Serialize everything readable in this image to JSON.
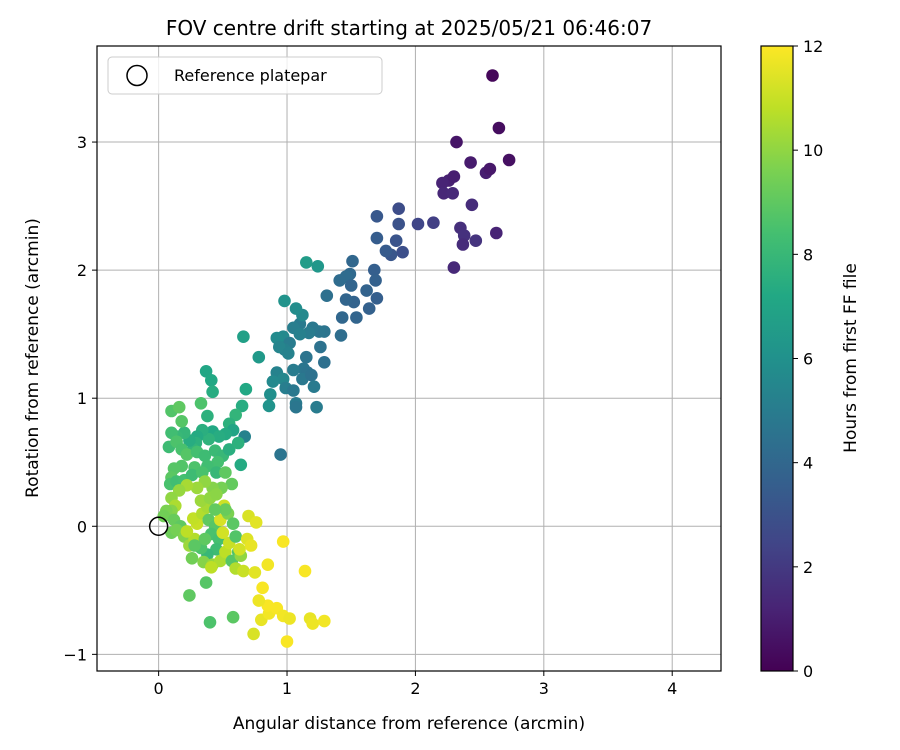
{
  "chart_data": {
    "type": "scatter",
    "title": "FOV centre drift starting at 2025/05/21 06:46:07",
    "xlabel": "Angular distance from reference (arcmin)",
    "ylabel": "Rotation from reference (arcmin)",
    "xlim": [
      -0.48,
      4.38
    ],
    "ylim": [
      -1.13,
      3.75
    ],
    "xticks": [
      0,
      1,
      2,
      3,
      4
    ],
    "xtick_labels": [
      "0",
      "1",
      "2",
      "3",
      "4"
    ],
    "yticks": [
      -1,
      0,
      1,
      2,
      3
    ],
    "ytick_labels": [
      "−1",
      "0",
      "1",
      "2",
      "3"
    ],
    "grid": true,
    "legend": {
      "placement": "top-left",
      "entries": [
        "Reference platepar"
      ]
    },
    "colorbar": {
      "label": "Hours from first FF file",
      "range": [
        0,
        12
      ],
      "ticks": [
        0,
        2,
        4,
        6,
        8,
        10,
        12
      ],
      "tick_labels": [
        "0",
        "2",
        "4",
        "6",
        "8",
        "10",
        "12"
      ],
      "colormap": "viridis"
    },
    "reference_point": {
      "name": "Reference platepar",
      "x": 0,
      "y": 0
    },
    "points": [
      [
        2.6,
        3.52,
        0.2
      ],
      [
        2.65,
        3.11,
        0.4
      ],
      [
        2.73,
        2.86,
        0.5
      ],
      [
        2.32,
        3.0,
        0.7
      ],
      [
        2.43,
        2.84,
        0.9
      ],
      [
        2.55,
        2.76,
        1.0
      ],
      [
        2.58,
        2.79,
        0.8
      ],
      [
        2.26,
        2.7,
        1.1
      ],
      [
        2.21,
        2.68,
        1.2
      ],
      [
        2.3,
        2.73,
        1.0
      ],
      [
        2.22,
        2.6,
        1.3
      ],
      [
        2.29,
        2.6,
        1.4
      ],
      [
        2.44,
        2.51,
        1.5
      ],
      [
        2.63,
        2.29,
        1.2
      ],
      [
        2.35,
        2.33,
        1.6
      ],
      [
        2.38,
        2.27,
        1.7
      ],
      [
        2.37,
        2.2,
        1.5
      ],
      [
        2.47,
        2.23,
        1.8
      ],
      [
        2.3,
        2.02,
        1.4
      ],
      [
        2.14,
        2.37,
        2.2
      ],
      [
        2.02,
        2.36,
        2.5
      ],
      [
        1.87,
        2.48,
        2.8
      ],
      [
        1.87,
        2.36,
        3.0
      ],
      [
        1.7,
        2.42,
        3.3
      ],
      [
        1.7,
        2.25,
        3.5
      ],
      [
        1.9,
        2.14,
        2.9
      ],
      [
        1.85,
        2.23,
        3.1
      ],
      [
        1.81,
        2.12,
        3.2
      ],
      [
        1.77,
        2.15,
        3.4
      ],
      [
        1.68,
        2.0,
        3.6
      ],
      [
        1.69,
        1.92,
        3.7
      ],
      [
        1.62,
        1.84,
        3.8
      ],
      [
        1.51,
        2.07,
        4.0
      ],
      [
        1.49,
        1.97,
        4.1
      ],
      [
        1.46,
        1.95,
        4.2
      ],
      [
        1.41,
        1.92,
        4.2
      ],
      [
        1.5,
        1.88,
        3.9
      ],
      [
        1.52,
        1.75,
        3.8
      ],
      [
        1.46,
        1.77,
        3.9
      ],
      [
        1.7,
        1.78,
        3.6
      ],
      [
        1.64,
        1.7,
        3.7
      ],
      [
        1.54,
        1.63,
        3.9
      ],
      [
        1.43,
        1.63,
        4.0
      ],
      [
        1.42,
        1.49,
        4.3
      ],
      [
        1.31,
        1.8,
        4.4
      ],
      [
        1.29,
        1.52,
        4.6
      ],
      [
        1.25,
        1.52,
        4.7
      ],
      [
        1.26,
        1.4,
        4.5
      ],
      [
        1.2,
        1.55,
        4.8
      ],
      [
        1.17,
        1.51,
        5.0
      ],
      [
        1.1,
        1.58,
        4.9
      ],
      [
        1.05,
        1.55,
        5.1
      ],
      [
        1.1,
        1.5,
        5.2
      ],
      [
        1.12,
        1.65,
        5.6
      ],
      [
        1.07,
        1.7,
        5.8
      ],
      [
        0.98,
        1.76,
        6.1
      ],
      [
        1.15,
        2.06,
        6.6
      ],
      [
        1.24,
        2.03,
        6.3
      ],
      [
        0.97,
        1.48,
        5.6
      ],
      [
        0.92,
        1.47,
        5.7
      ],
      [
        1.02,
        1.43,
        5.0
      ],
      [
        0.98,
        1.38,
        5.2
      ],
      [
        0.94,
        1.4,
        5.4
      ],
      [
        1.01,
        1.35,
        5.3
      ],
      [
        1.15,
        1.32,
        4.6
      ],
      [
        1.29,
        1.28,
        4.4
      ],
      [
        1.13,
        1.23,
        4.7
      ],
      [
        1.16,
        1.2,
        4.6
      ],
      [
        1.12,
        1.15,
        4.8
      ],
      [
        1.19,
        1.18,
        4.5
      ],
      [
        1.21,
        1.09,
        4.9
      ],
      [
        1.05,
        1.22,
        5.0
      ],
      [
        0.92,
        1.2,
        5.3
      ],
      [
        0.97,
        1.15,
        5.5
      ],
      [
        0.89,
        1.13,
        5.6
      ],
      [
        0.99,
        1.08,
        5.1
      ],
      [
        1.05,
        1.06,
        4.8
      ],
      [
        0.87,
        1.03,
        5.9
      ],
      [
        0.86,
        0.94,
        6.1
      ],
      [
        1.07,
        0.96,
        4.9
      ],
      [
        1.07,
        0.93,
        4.7
      ],
      [
        1.23,
        0.93,
        5.0
      ],
      [
        0.95,
        0.56,
        4.6
      ],
      [
        0.67,
        0.7,
        5.3
      ],
      [
        0.78,
        1.32,
        6.4
      ],
      [
        0.66,
        1.48,
        6.8
      ],
      [
        0.68,
        1.07,
        7.2
      ],
      [
        0.65,
        0.94,
        7.4
      ],
      [
        0.6,
        0.87,
        7.8
      ],
      [
        0.55,
        0.8,
        7.6
      ],
      [
        0.58,
        0.75,
        7.0
      ],
      [
        0.52,
        0.72,
        7.3
      ],
      [
        0.37,
        1.21,
        7.1
      ],
      [
        0.41,
        1.14,
        7.2
      ],
      [
        0.42,
        1.05,
        7.4
      ],
      [
        0.38,
        0.86,
        7.6
      ],
      [
        0.33,
        0.96,
        8.6
      ],
      [
        0.42,
        0.74,
        7.2
      ],
      [
        0.47,
        0.7,
        7.4
      ],
      [
        0.39,
        0.68,
        7.7
      ],
      [
        0.34,
        0.75,
        7.5
      ],
      [
        0.3,
        0.7,
        7.3
      ],
      [
        0.29,
        0.65,
        7.6
      ],
      [
        0.27,
        0.6,
        7.8
      ],
      [
        0.24,
        0.67,
        7.4
      ],
      [
        0.2,
        0.73,
        7.9
      ],
      [
        0.14,
        0.7,
        8.0
      ],
      [
        0.1,
        0.73,
        8.3
      ],
      [
        0.08,
        0.62,
        8.2
      ],
      [
        0.1,
        0.9,
        8.7
      ],
      [
        0.16,
        0.93,
        9.0
      ],
      [
        0.18,
        0.82,
        8.8
      ],
      [
        0.14,
        0.66,
        8.6
      ],
      [
        0.18,
        0.6,
        8.5
      ],
      [
        0.22,
        0.56,
        8.8
      ],
      [
        0.3,
        0.58,
        8.4
      ],
      [
        0.36,
        0.55,
        8.2
      ],
      [
        0.44,
        0.59,
        8.1
      ],
      [
        0.5,
        0.55,
        8.0
      ],
      [
        0.55,
        0.6,
        7.5
      ],
      [
        0.62,
        0.65,
        7.6
      ],
      [
        0.64,
        0.48,
        7.3
      ],
      [
        0.46,
        0.5,
        8.4
      ],
      [
        0.38,
        0.47,
        8.3
      ],
      [
        0.28,
        0.46,
        8.6
      ],
      [
        0.18,
        0.47,
        8.7
      ],
      [
        0.12,
        0.45,
        8.8
      ],
      [
        0.1,
        0.38,
        8.9
      ],
      [
        0.09,
        0.33,
        8.5
      ],
      [
        0.14,
        0.35,
        8.3
      ],
      [
        0.2,
        0.36,
        8.4
      ],
      [
        0.26,
        0.4,
        8.2
      ],
      [
        0.34,
        0.42,
        8.5
      ],
      [
        0.45,
        0.42,
        8.0
      ],
      [
        0.52,
        0.42,
        9.0
      ],
      [
        0.57,
        0.33,
        9.1
      ],
      [
        0.49,
        0.3,
        9.5
      ],
      [
        0.42,
        0.3,
        9.8
      ],
      [
        0.36,
        0.35,
        10.0
      ],
      [
        0.3,
        0.3,
        10.2
      ],
      [
        0.22,
        0.32,
        10.4
      ],
      [
        0.16,
        0.28,
        10.1
      ],
      [
        0.1,
        0.22,
        10.0
      ],
      [
        0.13,
        0.16,
        10.5
      ],
      [
        0.1,
        0.12,
        9.8
      ],
      [
        0.06,
        0.12,
        9.6
      ],
      [
        0.04,
        0.08,
        9.4
      ],
      [
        0.12,
        0.05,
        9.2
      ],
      [
        0.17,
        0.0,
        9.0
      ],
      [
        0.1,
        -0.05,
        9.3
      ],
      [
        0.14,
        -0.03,
        9.5
      ],
      [
        0.2,
        -0.08,
        9.7
      ],
      [
        0.24,
        -0.15,
        10.2
      ],
      [
        0.28,
        -0.1,
        10.6
      ],
      [
        0.22,
        -0.04,
        10.8
      ],
      [
        0.3,
        0.02,
        11.0
      ],
      [
        0.27,
        0.06,
        10.9
      ],
      [
        0.34,
        0.1,
        10.6
      ],
      [
        0.38,
        0.15,
        10.4
      ],
      [
        0.33,
        0.2,
        10.2
      ],
      [
        0.4,
        0.22,
        10.0
      ],
      [
        0.45,
        0.25,
        9.9
      ],
      [
        0.39,
        0.05,
        9.0
      ],
      [
        0.44,
        0.0,
        8.8
      ],
      [
        0.41,
        -0.06,
        8.5
      ],
      [
        0.47,
        -0.1,
        8.4
      ],
      [
        0.45,
        -0.18,
        8.2
      ],
      [
        0.38,
        -0.22,
        8.0
      ],
      [
        0.33,
        -0.17,
        8.6
      ],
      [
        0.36,
        -0.1,
        9.0
      ],
      [
        0.28,
        -0.15,
        8.9
      ],
      [
        0.26,
        -0.25,
        9.4
      ],
      [
        0.35,
        -0.28,
        9.8
      ],
      [
        0.42,
        -0.3,
        10.1
      ],
      [
        0.48,
        -0.27,
        10.5
      ],
      [
        0.52,
        -0.2,
        10.8
      ],
      [
        0.55,
        -0.13,
        11.0
      ],
      [
        0.5,
        -0.05,
        11.2
      ],
      [
        0.48,
        0.05,
        11.3
      ],
      [
        0.51,
        0.16,
        11.1
      ],
      [
        0.54,
        0.1,
        9.6
      ],
      [
        0.58,
        0.02,
        8.9
      ],
      [
        0.6,
        -0.08,
        8.7
      ],
      [
        0.62,
        -0.2,
        8.6
      ],
      [
        0.57,
        -0.27,
        8.8
      ],
      [
        0.64,
        -0.23,
        10.0
      ],
      [
        0.6,
        -0.33,
        10.6
      ],
      [
        0.66,
        -0.35,
        11.0
      ],
      [
        0.63,
        -0.18,
        11.2
      ],
      [
        0.69,
        -0.1,
        11.4
      ],
      [
        0.72,
        -0.15,
        11.6
      ],
      [
        0.7,
        0.08,
        11.3
      ],
      [
        0.76,
        0.03,
        11.5
      ],
      [
        0.52,
        0.13,
        9.2
      ],
      [
        0.44,
        0.13,
        9.1
      ],
      [
        0.37,
        -0.44,
        8.8
      ],
      [
        0.24,
        -0.54,
        9.0
      ],
      [
        0.4,
        -0.75,
        8.6
      ],
      [
        0.58,
        -0.71,
        8.9
      ],
      [
        0.41,
        -0.32,
        10.8
      ],
      [
        0.74,
        -0.84,
        11.3
      ],
      [
        0.8,
        -0.73,
        11.6
      ],
      [
        0.86,
        -0.68,
        11.8
      ],
      [
        0.85,
        -0.62,
        11.9
      ],
      [
        0.92,
        -0.64,
        11.9
      ],
      [
        0.97,
        -0.7,
        11.8
      ],
      [
        1.02,
        -0.72,
        11.7
      ],
      [
        1.0,
        -0.9,
        11.9
      ],
      [
        0.78,
        -0.58,
        11.7
      ],
      [
        0.81,
        -0.48,
        11.9
      ],
      [
        0.75,
        -0.36,
        11.5
      ],
      [
        0.85,
        -0.3,
        11.8
      ],
      [
        0.97,
        -0.12,
        11.9
      ],
      [
        1.14,
        -0.35,
        11.9
      ],
      [
        1.18,
        -0.72,
        11.6
      ],
      [
        1.2,
        -0.76,
        11.7
      ],
      [
        1.29,
        -0.74,
        11.8
      ]
    ]
  }
}
